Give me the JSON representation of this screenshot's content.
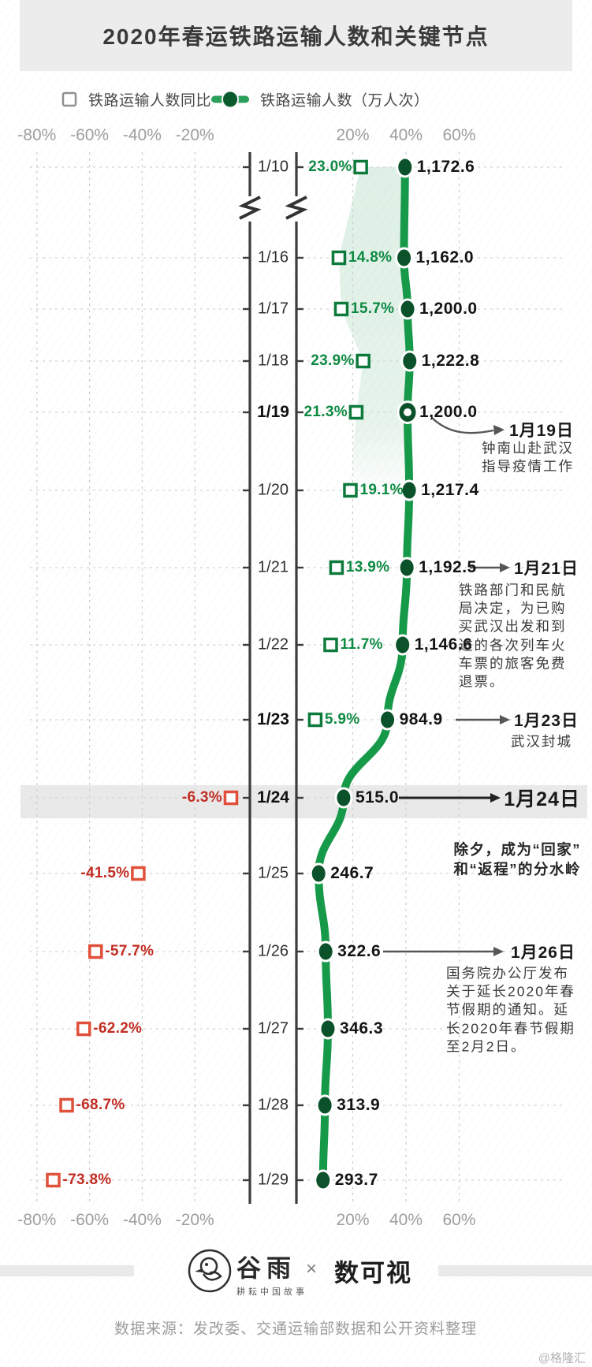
{
  "header": {
    "title": "2020年春运铁路运输人数和关键节点"
  },
  "legend": {
    "yoy_label": "铁路运输人数同比",
    "count_label": "铁路运输人数（万人次）"
  },
  "axis": {
    "tick_labels": [
      "-80%",
      "-60%",
      "-40%",
      "-20%",
      "20%",
      "40%",
      "60%"
    ],
    "tick_values": [
      -80,
      -60,
      -40,
      -20,
      20,
      40,
      60
    ]
  },
  "chart_data": {
    "type": "line",
    "orientation": "vertical-timeline",
    "title": "2020年春运铁路运输人数和关键节点",
    "unit": "万人次",
    "series_names": [
      "铁路运输人数同比",
      "铁路运输人数（万人次）"
    ],
    "axis_break_after_first_row": true,
    "rows": [
      {
        "date": "1/10",
        "pct": 23.0,
        "pct_label": "23.0%",
        "value": 1172.6,
        "value_label": "1,172.6",
        "pct_text_side": "left",
        "negative": false,
        "emph": false,
        "ring": false
      },
      {
        "date": "1/16",
        "pct": 14.8,
        "pct_label": "14.8%",
        "value": 1162.0,
        "value_label": "1,162.0",
        "pct_text_side": "right",
        "negative": false,
        "emph": false,
        "ring": false
      },
      {
        "date": "1/17",
        "pct": 15.7,
        "pct_label": "15.7%",
        "value": 1200.0,
        "value_label": "1,200.0",
        "pct_text_side": "right",
        "negative": false,
        "emph": false,
        "ring": false
      },
      {
        "date": "1/18",
        "pct": 23.9,
        "pct_label": "23.9%",
        "value": 1222.8,
        "value_label": "1,222.8",
        "pct_text_side": "left",
        "negative": false,
        "emph": false,
        "ring": false
      },
      {
        "date": "1/19",
        "pct": 21.3,
        "pct_label": "21.3%",
        "value": 1200.0,
        "value_label": "1,200.0",
        "pct_text_side": "left",
        "negative": false,
        "emph": true,
        "ring": true
      },
      {
        "date": "1/20",
        "pct": 19.1,
        "pct_label": "19.1%",
        "value": 1217.4,
        "value_label": "1,217.4",
        "pct_text_side": "right",
        "negative": false,
        "emph": false,
        "ring": false
      },
      {
        "date": "1/21",
        "pct": 13.9,
        "pct_label": "13.9%",
        "value": 1192.5,
        "value_label": "1,192.5",
        "pct_text_side": "right",
        "negative": false,
        "emph": false,
        "ring": false
      },
      {
        "date": "1/22",
        "pct": 11.7,
        "pct_label": "11.7%",
        "value": 1146.6,
        "value_label": "1,146.6",
        "pct_text_side": "right",
        "negative": false,
        "emph": false,
        "ring": false
      },
      {
        "date": "1/23",
        "pct": 5.9,
        "pct_label": "5.9%",
        "value": 984.9,
        "value_label": "984.9",
        "pct_text_side": "right",
        "negative": false,
        "emph": true,
        "ring": false
      },
      {
        "date": "1/24",
        "pct": -6.3,
        "pct_label": "-6.3%",
        "value": 515.0,
        "value_label": "515.0",
        "pct_text_side": "left",
        "negative": true,
        "emph": true,
        "ring": false,
        "highlight_band": true
      },
      {
        "date": "1/25",
        "pct": -41.5,
        "pct_label": "-41.5%",
        "value": 246.7,
        "value_label": "246.7",
        "pct_text_side": "left",
        "negative": true,
        "emph": false,
        "ring": false
      },
      {
        "date": "1/26",
        "pct": -57.7,
        "pct_label": "-57.7%",
        "value": 322.6,
        "value_label": "322.6",
        "pct_text_side": "right",
        "negative": true,
        "emph": false,
        "ring": false
      },
      {
        "date": "1/27",
        "pct": -62.2,
        "pct_label": "-62.2%",
        "value": 346.3,
        "value_label": "346.3",
        "pct_text_side": "right",
        "negative": true,
        "emph": false,
        "ring": false
      },
      {
        "date": "1/28",
        "pct": -68.7,
        "pct_label": "-68.7%",
        "value": 313.9,
        "value_label": "313.9",
        "pct_text_side": "right",
        "negative": true,
        "emph": false,
        "ring": false
      },
      {
        "date": "1/29",
        "pct": -73.8,
        "pct_label": "-73.8%",
        "value": 293.7,
        "value_label": "293.7",
        "pct_text_side": "right",
        "negative": true,
        "emph": false,
        "ring": false
      }
    ],
    "shaded_area_date_range": [
      "1/10",
      "1/20"
    ],
    "xlim_pct": [
      -80,
      60
    ],
    "grid": "dashed"
  },
  "annotations": [
    {
      "title": "1月19日",
      "lines": [
        "钟南山赴武汉",
        "指导疫情工作"
      ],
      "emph": false,
      "arrow": "curved"
    },
    {
      "title": "1月21日",
      "lines": [
        "铁路部门和民航",
        "局决定，为已购",
        "买武汉出发和到",
        "达的各次列车火",
        "车票的旅客免费",
        "退票。"
      ],
      "emph": false,
      "arrow": "straight"
    },
    {
      "title": "1月23日",
      "lines": [
        "武汉封城"
      ],
      "emph": false,
      "arrow": "straight"
    },
    {
      "title": "1月24日",
      "lines": [
        "除夕，成为“回家”",
        "和“返程”的分水岭"
      ],
      "emph": true,
      "arrow": "straight"
    },
    {
      "title": "1月26日",
      "lines": [
        "国务院办公厅发布",
        "关于延长2020年春",
        "节假期的通知。延",
        "长2020年春节假期",
        "至2月2日。"
      ],
      "emph": false,
      "arrow": "straight"
    }
  ],
  "footer": {
    "logo1": "谷雨",
    "logo1_sub": "耕耘中国故事",
    "cross": "×",
    "logo2": "数可视",
    "source": "数据来源：发改委、交通运输部数据和公开资料整理",
    "watermark": "@格隆汇"
  },
  "colors": {
    "line_green": "#169a4a",
    "dot_green": "#0b522a",
    "pos_green_text": "#0d8a42",
    "square_green": "#0d7a3c",
    "neg_red_text": "#c22d23",
    "square_red": "#e0503a",
    "highlight_band": "#e3e3e3",
    "header_gray": "#ececec",
    "grid_gray": "#cdcdcd",
    "axis_dark": "#3c3c3c",
    "arrow_gray": "#565656",
    "arrow_dark": "#222222",
    "area_fill": "rgba(26,150,76,0.12)"
  }
}
